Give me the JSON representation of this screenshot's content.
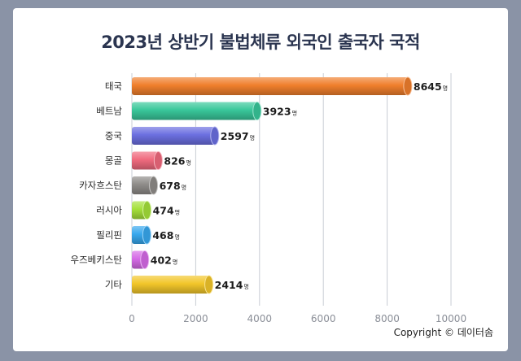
{
  "title": "2023년 상반기 불법체류 외국인 출국자 국적",
  "copyright": "Copyright © 데이터솜",
  "chart_data": {
    "type": "bar",
    "orientation": "horizontal",
    "title": "2023년 상반기 불법체류 외국인 출국자 국적",
    "categories": [
      "태국",
      "베트남",
      "중국",
      "몽골",
      "카자흐스탄",
      "러시아",
      "필리핀",
      "우즈베키스탄",
      "기타"
    ],
    "values": [
      8645,
      3923,
      2597,
      826,
      678,
      474,
      468,
      402,
      2414
    ],
    "value_suffix": "명",
    "bar_colors": [
      "#f07f2c",
      "#39c79a",
      "#6b6fe0",
      "#f06a7e",
      "#8f8c89",
      "#a4e03a",
      "#38a8ee",
      "#d56ae6",
      "#f2c62a"
    ],
    "xlim": [
      0,
      10000
    ],
    "xticks": [
      0,
      2000,
      4000,
      6000,
      8000,
      10000
    ],
    "xlabel": "",
    "ylabel": "",
    "grid": true,
    "legend": "none"
  }
}
